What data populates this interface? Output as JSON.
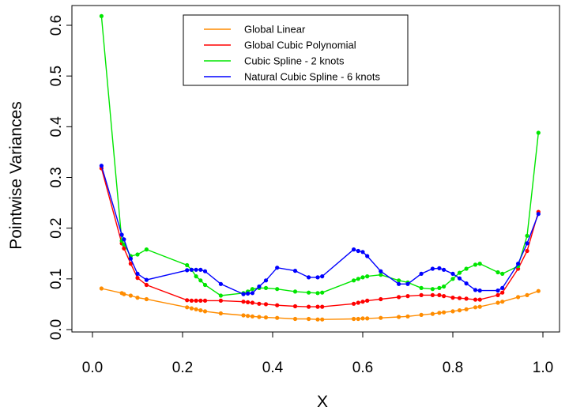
{
  "chart_data": {
    "type": "line",
    "xlabel": "X",
    "ylabel": "Pointwise Variances",
    "xlim": [
      0.0,
      1.0
    ],
    "ylim": [
      0.0,
      0.62
    ],
    "xticks": [
      0.0,
      0.2,
      0.4,
      0.6,
      0.8,
      1.0
    ],
    "xtick_labels": [
      "0.0",
      "0.2",
      "0.4",
      "0.6",
      "0.8",
      "1.0"
    ],
    "yticks": [
      0.0,
      0.1,
      0.2,
      0.3,
      0.4,
      0.5,
      0.6
    ],
    "ytick_labels": [
      "0.0",
      "0.1",
      "0.2",
      "0.3",
      "0.4",
      "0.5",
      "0.6"
    ],
    "grid": false,
    "legend_position": "top-center",
    "x": [
      0.02,
      0.065,
      0.07,
      0.085,
      0.1,
      0.12,
      0.21,
      0.22,
      0.23,
      0.24,
      0.25,
      0.285,
      0.335,
      0.345,
      0.355,
      0.37,
      0.385,
      0.41,
      0.45,
      0.48,
      0.5,
      0.51,
      0.58,
      0.59,
      0.6,
      0.61,
      0.64,
      0.68,
      0.7,
      0.73,
      0.755,
      0.77,
      0.78,
      0.8,
      0.815,
      0.83,
      0.85,
      0.86,
      0.9,
      0.91,
      0.945,
      0.965,
      0.99
    ],
    "series": [
      {
        "name": "Global Linear",
        "color": "#ff8c00",
        "values": [
          0.081,
          0.072,
          0.07,
          0.067,
          0.063,
          0.06,
          0.044,
          0.042,
          0.04,
          0.038,
          0.036,
          0.032,
          0.028,
          0.027,
          0.026,
          0.025,
          0.024,
          0.023,
          0.021,
          0.021,
          0.02,
          0.02,
          0.021,
          0.021,
          0.022,
          0.022,
          0.023,
          0.025,
          0.026,
          0.029,
          0.031,
          0.033,
          0.034,
          0.036,
          0.038,
          0.04,
          0.044,
          0.045,
          0.053,
          0.055,
          0.064,
          0.068,
          0.076
        ]
      },
      {
        "name": "Global Cubic Polynomial",
        "color": "#ff0000",
        "values": [
          0.318,
          0.17,
          0.16,
          0.13,
          0.102,
          0.088,
          0.058,
          0.057,
          0.057,
          0.057,
          0.057,
          0.057,
          0.055,
          0.054,
          0.053,
          0.051,
          0.05,
          0.048,
          0.046,
          0.045,
          0.045,
          0.045,
          0.051,
          0.053,
          0.055,
          0.057,
          0.06,
          0.064,
          0.066,
          0.068,
          0.068,
          0.068,
          0.066,
          0.063,
          0.062,
          0.061,
          0.059,
          0.059,
          0.068,
          0.073,
          0.12,
          0.155,
          0.232
        ]
      },
      {
        "name": "Cubic Spline - 2 knots",
        "color": "#00e600",
        "values": [
          0.618,
          0.175,
          0.168,
          0.145,
          0.148,
          0.158,
          0.127,
          0.118,
          0.105,
          0.097,
          0.088,
          0.067,
          0.072,
          0.075,
          0.08,
          0.082,
          0.082,
          0.08,
          0.075,
          0.073,
          0.072,
          0.073,
          0.097,
          0.1,
          0.103,
          0.105,
          0.108,
          0.097,
          0.093,
          0.082,
          0.08,
          0.082,
          0.085,
          0.1,
          0.112,
          0.12,
          0.128,
          0.13,
          0.113,
          0.11,
          0.125,
          0.185,
          0.388
        ]
      },
      {
        "name": "Natural Cubic Spline - 6 knots",
        "color": "#0000ff",
        "values": [
          0.323,
          0.187,
          0.178,
          0.14,
          0.11,
          0.098,
          0.117,
          0.118,
          0.118,
          0.118,
          0.115,
          0.09,
          0.07,
          0.071,
          0.072,
          0.085,
          0.097,
          0.122,
          0.116,
          0.103,
          0.103,
          0.105,
          0.158,
          0.155,
          0.153,
          0.145,
          0.115,
          0.09,
          0.09,
          0.11,
          0.12,
          0.121,
          0.118,
          0.11,
          0.101,
          0.091,
          0.078,
          0.077,
          0.077,
          0.082,
          0.13,
          0.17,
          0.228
        ]
      }
    ]
  }
}
